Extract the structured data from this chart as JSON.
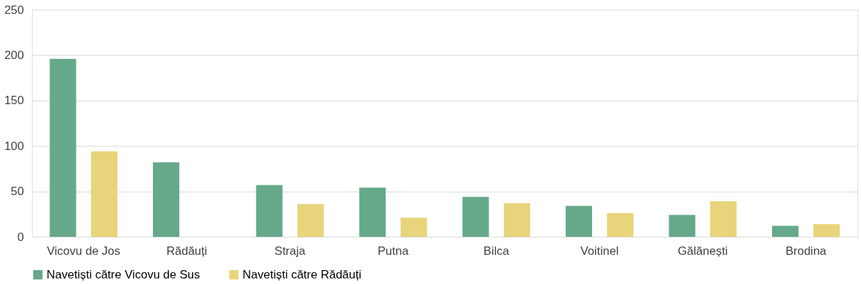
{
  "chart_data": {
    "type": "bar",
    "categories": [
      "Vicovu de Jos",
      "Rădăuți",
      "Straja",
      "Putna",
      "Bilca",
      "Voitinel",
      "Gălănești",
      "Brodina"
    ],
    "series": [
      {
        "name": "Navetiști către Vicovu de Sus",
        "color": "#65a98a",
        "values": [
          196,
          82,
          57,
          54,
          44,
          34,
          24,
          12
        ]
      },
      {
        "name": "Navetiști către Rădăuți",
        "color": "#e8d47a",
        "values": [
          94,
          null,
          36,
          21,
          37,
          26,
          39,
          14
        ]
      }
    ],
    "ylim": [
      0,
      250
    ],
    "yticks": [
      0,
      50,
      100,
      150,
      200,
      250
    ],
    "grid": "y",
    "legend": "bottom"
  }
}
